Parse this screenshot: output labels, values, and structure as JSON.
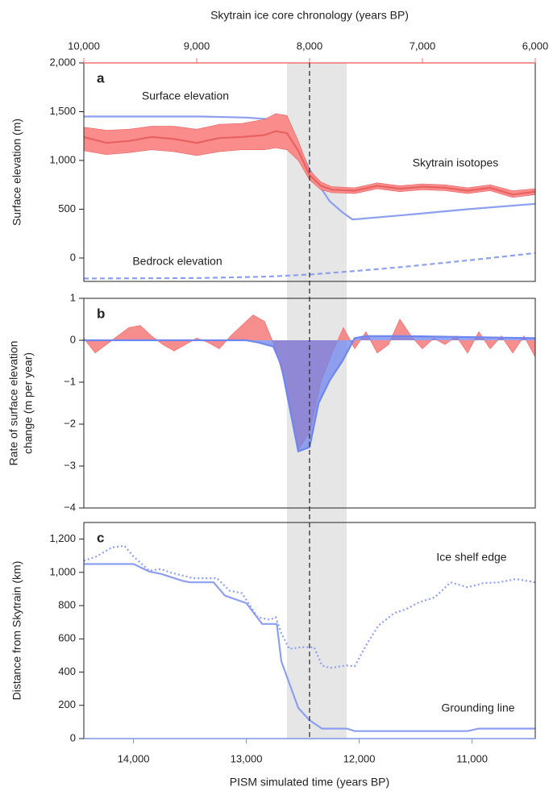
{
  "chart_data": [
    {
      "type": "line",
      "panel": "a",
      "ylabel": "Surface elevation (m)",
      "ylim": [
        -240,
        2000
      ],
      "yticks": [
        0,
        500,
        {
          "value": 1000,
          "label": "1,000"
        },
        {
          "value": 1500,
          "label": "1,500"
        },
        {
          "value": 2000,
          "label": "2,000"
        }
      ],
      "xlim": [
        14440,
        10440
      ],
      "top_axis": {
        "label": "Skytrain ice core chronology (years BP)",
        "color": "#f07070",
        "lim": [
          10000,
          6000
        ],
        "ticks": [
          {
            "value": 10000,
            "label": "10,000"
          },
          {
            "value": 9000,
            "label": "9,000"
          },
          {
            "value": 8000,
            "label": "8,000"
          },
          {
            "value": 7000,
            "label": "7,000"
          },
          {
            "value": 6000,
            "label": "6,000"
          }
        ]
      },
      "shading": [
        12640,
        12110
      ],
      "event_line": 12440,
      "series": [
        {
          "name": "Surface elevation",
          "color": "#8c9ff0",
          "x": [
            14440,
            13400,
            13000,
            12640,
            12540,
            12440,
            12330,
            12260,
            12150,
            12060,
            11600,
            11040,
            10440
          ],
          "values": [
            1450,
            1450,
            1440,
            1410,
            1150,
            910,
            700,
            580,
            470,
            395,
            440,
            500,
            555
          ]
        },
        {
          "name": "Skytrain isotopes",
          "color": "#e86262",
          "band_color": "#fb8c8c",
          "xaxis": "top",
          "x": [
            10000,
            9800,
            9600,
            9400,
            9200,
            9000,
            8800,
            8600,
            8400,
            8300,
            8200,
            8100,
            8000,
            7900,
            7800,
            7600,
            7400,
            7200,
            7000,
            6800,
            6600,
            6400,
            6200,
            6000
          ],
          "values": [
            1240,
            1180,
            1200,
            1240,
            1220,
            1180,
            1230,
            1240,
            1260,
            1300,
            1280,
            1100,
            850,
            740,
            700,
            690,
            740,
            710,
            730,
            720,
            690,
            720,
            650,
            680
          ],
          "upper": [
            1340,
            1310,
            1320,
            1350,
            1350,
            1320,
            1370,
            1380,
            1420,
            1480,
            1460,
            1200,
            900,
            780,
            730,
            720,
            770,
            740,
            760,
            750,
            720,
            750,
            690,
            710
          ],
          "lower": [
            1100,
            1060,
            1080,
            1110,
            1090,
            1050,
            1090,
            1110,
            1110,
            1130,
            1110,
            1000,
            800,
            700,
            670,
            660,
            710,
            680,
            700,
            690,
            660,
            690,
            620,
            650
          ]
        },
        {
          "name": "Bedrock elevation",
          "color": "#8c9ff0",
          "line_style": "dashed",
          "x": [
            14440,
            13400,
            12800,
            12440,
            12000,
            11600,
            11000,
            10440
          ],
          "values": [
            -210,
            -205,
            -190,
            -170,
            -130,
            -90,
            -20,
            50
          ]
        }
      ]
    },
    {
      "type": "area",
      "panel": "b",
      "ylabel": [
        "Rate of surface elevation",
        "change (m per year)"
      ],
      "ylim": [
        -4,
        1
      ],
      "yticks": [
        1,
        0,
        {
          "value": -1,
          "label": "−1"
        },
        {
          "value": -2,
          "label": "−2"
        },
        {
          "value": -3,
          "label": "−3"
        },
        {
          "value": -4,
          "label": "−4"
        }
      ],
      "xlim": [
        14440,
        10440
      ],
      "series": [
        {
          "color": "#f47a7a",
          "xaxis": "top",
          "x": [
            10000,
            9900,
            9800,
            9700,
            9600,
            9500,
            9400,
            9300,
            9200,
            9100,
            9000,
            8900,
            8800,
            8700,
            8600,
            8500,
            8400,
            8300,
            8200,
            8100,
            8000,
            7900,
            7800,
            7700,
            7600,
            7500,
            7400,
            7300,
            7200,
            7100,
            7000,
            6900,
            6800,
            6700,
            6600,
            6500,
            6400,
            6300,
            6200,
            6100,
            6000
          ],
          "values": [
            0.05,
            -0.3,
            -0.1,
            0.1,
            0.3,
            0.35,
            0.1,
            -0.1,
            -0.25,
            -0.1,
            0.05,
            -0.05,
            -0.2,
            0.1,
            0.35,
            0.6,
            0.45,
            -0.2,
            -1.2,
            -2.6,
            -2.2,
            -1.0,
            -0.3,
            0.3,
            -0.2,
            0.2,
            -0.3,
            -0.1,
            0.5,
            0.1,
            -0.2,
            0.05,
            -0.1,
            0.1,
            -0.3,
            0.2,
            -0.2,
            0.1,
            -0.3,
            0.1,
            -0.4
          ]
        },
        {
          "color": "#6f86ee",
          "x": [
            14440,
            13000,
            12900,
            12760,
            12690,
            12540,
            12440,
            12360,
            12260,
            12150,
            12040,
            11940,
            11600,
            10440
          ],
          "values": [
            0,
            0,
            -0.05,
            -0.15,
            -0.6,
            -2.65,
            -2.55,
            -1.5,
            -0.95,
            -0.5,
            0.05,
            0.1,
            0.1,
            0.05
          ]
        }
      ]
    },
    {
      "type": "line",
      "panel": "c",
      "ylabel": "Distance from Skytrain (km)",
      "ylim": [
        0,
        1300
      ],
      "yticks": [
        0,
        200,
        400,
        600,
        800,
        {
          "value": 1000,
          "label": "1,000"
        },
        {
          "value": 1200,
          "label": "1,200"
        }
      ],
      "xlim": [
        14440,
        10440
      ],
      "xlabel": "PISM simulated time (years BP)",
      "x_color": "#7d93e6",
      "xticks": [
        {
          "value": 14000,
          "label": "14,000"
        },
        {
          "value": 13000,
          "label": "13,000"
        },
        {
          "value": 12000,
          "label": "12,000"
        },
        {
          "value": 11000,
          "label": "11,000"
        }
      ],
      "series": [
        {
          "name": "Ice shelf edge",
          "color": "#8c9ff0",
          "line_style": "dotted",
          "x": [
            14440,
            14330,
            14190,
            14080,
            14000,
            13860,
            13760,
            13650,
            13470,
            13260,
            13150,
            13040,
            12900,
            12790,
            12740,
            12690,
            12620,
            12510,
            12400,
            12330,
            12260,
            12110,
            12040,
            11940,
            11830,
            11690,
            11580,
            11470,
            11330,
            11190,
            11040,
            10900,
            10760,
            10610,
            10440
          ],
          "values": [
            1070,
            1095,
            1150,
            1160,
            1095,
            1010,
            1020,
            995,
            965,
            965,
            890,
            875,
            730,
            715,
            730,
            635,
            540,
            550,
            550,
            440,
            425,
            440,
            435,
            560,
            680,
            755,
            780,
            820,
            850,
            940,
            910,
            935,
            940,
            960,
            940
          ]
        },
        {
          "name": "Grounding line",
          "color": "#8c9ff0",
          "x": [
            14440,
            14000,
            13860,
            13750,
            13570,
            13500,
            13290,
            13190,
            13000,
            12860,
            12730,
            12690,
            12540,
            12440,
            12330,
            12110,
            12040,
            11040,
            10940,
            10440
          ],
          "values": [
            1050,
            1050,
            1005,
            990,
            950,
            940,
            940,
            860,
            815,
            690,
            690,
            465,
            185,
            110,
            60,
            60,
            45,
            45,
            60,
            60
          ]
        }
      ]
    }
  ]
}
